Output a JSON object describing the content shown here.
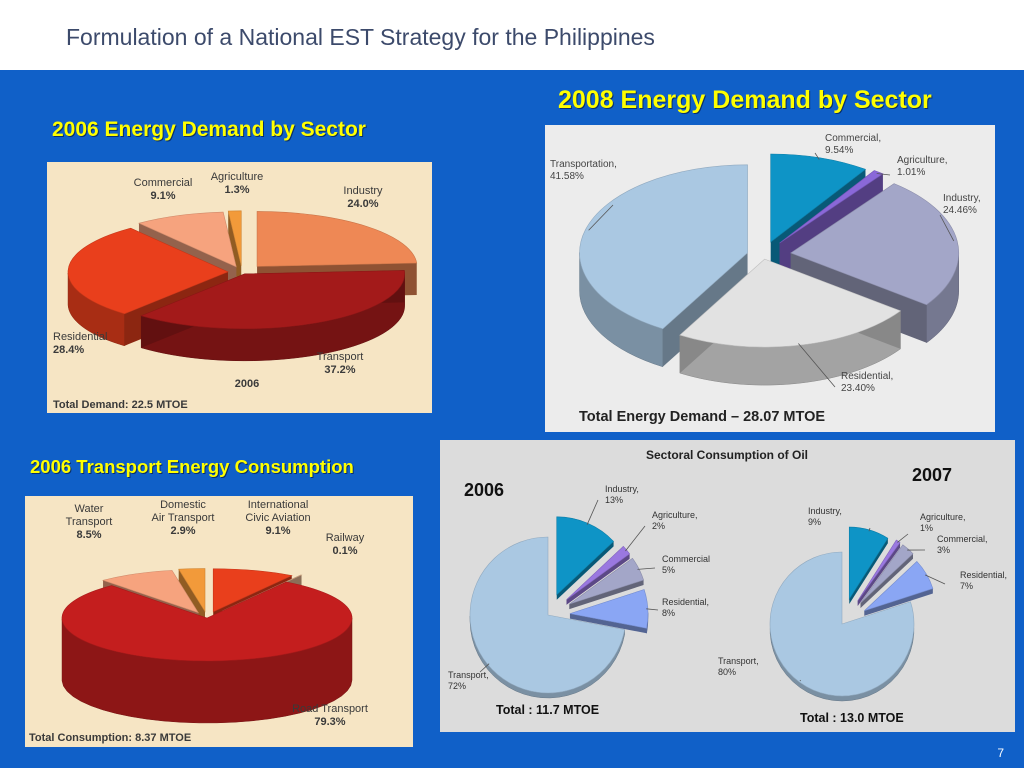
{
  "slide": {
    "title": "Formulation of a National EST Strategy for the Philippines",
    "page_number": "7"
  },
  "colors": {
    "background": "#1060c8",
    "heading": "#ffff00",
    "title_text": "#3c4a6b"
  },
  "headings": {
    "demand_2006": "2006 Energy Demand by Sector",
    "demand_2008": "2008 Energy Demand by Sector",
    "transport_2006": "2006 Transport Energy Consumption"
  },
  "chart_data": [
    {
      "id": "demand2006",
      "type": "pie",
      "title": "",
      "year_label": "2006",
      "total_label": "Total Demand: 22.5 MTOE",
      "slices": [
        {
          "name": "Industry",
          "value": 24.0,
          "value_label": "24.0%",
          "color": "#ee8855"
        },
        {
          "name": "Transport",
          "value": 37.2,
          "value_label": "37.2%",
          "color": "#a31a1a"
        },
        {
          "name": "Residential",
          "value": 28.4,
          "value_label": "28.4%",
          "color": "#e93f1c"
        },
        {
          "name": "Commercial",
          "value": 9.1,
          "value_label": "9.1%",
          "color": "#f6a37e"
        },
        {
          "name": "Agriculture",
          "value": 1.3,
          "value_label": "1.3%",
          "color": "#f29a3a"
        }
      ]
    },
    {
      "id": "demand2008",
      "type": "pie",
      "title": "",
      "total_label": "Total Energy Demand – 28.07 MTOE",
      "slices": [
        {
          "name": "Commercial,",
          "value": 9.54,
          "value_label": "9.54%",
          "color": "#0e94c6"
        },
        {
          "name": "Agriculture,",
          "value": 1.01,
          "value_label": "1.01%",
          "color": "#8a68d8"
        },
        {
          "name": "Industry,",
          "value": 24.46,
          "value_label": "24.46%",
          "color": "#a3a6c8"
        },
        {
          "name": "Residential,",
          "value": 23.4,
          "value_label": "23.40%",
          "color": "#e2e2e2"
        },
        {
          "name": "Transportation,",
          "value": 41.58,
          "value_label": "41.58%",
          "color": "#aac8e2"
        }
      ]
    },
    {
      "id": "transport2006",
      "type": "pie",
      "title": "",
      "total_label": "Total Consumption: 8.37 MTOE",
      "slices": [
        {
          "name": "International Civic Aviation",
          "value": 9.1,
          "value_label": "9.1%",
          "color": "#e93f1c"
        },
        {
          "name": "Railway",
          "value": 0.1,
          "value_label": "0.1%",
          "color": "#e8b892"
        },
        {
          "name": "Road Transport",
          "value": 79.3,
          "value_label": "79.3%",
          "color": "#c41e1e"
        },
        {
          "name": "Water Transport",
          "value": 8.5,
          "value_label": "8.5%",
          "color": "#f6a37e"
        },
        {
          "name": "Domestic Air Transport",
          "value": 2.9,
          "value_label": "2.9%",
          "color": "#f29a3a"
        }
      ]
    },
    {
      "id": "oil2006",
      "type": "pie",
      "title": "Sectoral Consumption of Oil",
      "year_label": "2006",
      "total_label": "Total : 11.7 MTOE",
      "slices": [
        {
          "name": "Industry,",
          "value": 13,
          "value_label": "13%",
          "color": "#0e94c6"
        },
        {
          "name": "Agriculture,",
          "value": 2,
          "value_label": "2%",
          "color": "#9a78e0"
        },
        {
          "name": "Commercial",
          "value": 5,
          "value_label": "5%",
          "color": "#a3a6c8"
        },
        {
          "name": "Residential,",
          "value": 8,
          "value_label": "8%",
          "color": "#8aa6f4"
        },
        {
          "name": "Transport,",
          "value": 72,
          "value_label": "72%",
          "color": "#aac8e2"
        }
      ]
    },
    {
      "id": "oil2007",
      "type": "pie",
      "title": "",
      "year_label": "2007",
      "total_label": "Total : 13.0 MTOE",
      "slices": [
        {
          "name": "Industry,",
          "value": 9,
          "value_label": "9%",
          "color": "#0e94c6"
        },
        {
          "name": "Agriculture,",
          "value": 1,
          "value_label": "1%",
          "color": "#9a78e0"
        },
        {
          "name": "Commercial,",
          "value": 3,
          "value_label": "3%",
          "color": "#a3a6c8"
        },
        {
          "name": "Residential,",
          "value": 7,
          "value_label": "7%",
          "color": "#8aa6f4"
        },
        {
          "name": "Transport,",
          "value": 80,
          "value_label": "80%",
          "color": "#aac8e2"
        }
      ]
    }
  ]
}
